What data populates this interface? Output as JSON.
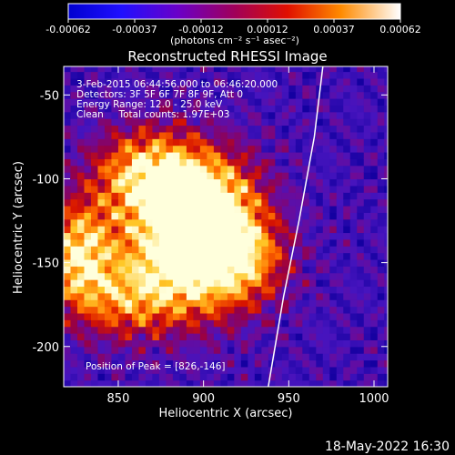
{
  "chart_data": {
    "type": "heatmap",
    "title": "Reconstructed RHESSI Image",
    "xlabel": "Heliocentric X (arcsec)",
    "ylabel": "Heliocentric Y (arcsec)",
    "xlim": [
      818,
      1008
    ],
    "ylim": [
      -224,
      -33
    ],
    "x_ticks": [
      850,
      900,
      950,
      1000
    ],
    "y_ticks": [
      -50,
      -100,
      -150,
      -200
    ],
    "colorbar": {
      "ticks": [
        "-0.00062",
        "-0.00037",
        "-0.00012",
        "0.00012",
        "0.00037",
        "0.00062"
      ],
      "unit_label": "(photons cm⁻² s⁻¹ asec⁻²)",
      "range": [
        -0.00062,
        0.00062
      ],
      "colormap": "rhessi-fire"
    },
    "peak_position": [
      826,
      -146
    ],
    "limb_arc": [
      [
        970,
        -33
      ],
      [
        965,
        -75
      ],
      [
        956,
        -125
      ],
      [
        947,
        -170
      ],
      [
        938,
        -224
      ]
    ],
    "source_blobs": [
      {
        "x": 826,
        "y": -145,
        "sx": 14,
        "sy": 22,
        "amp": 0.95
      },
      {
        "x": 880,
        "y": -130,
        "sx": 28,
        "sy": 34,
        "amp": 0.75
      },
      {
        "x": 905,
        "y": -115,
        "sx": 22,
        "sy": 22,
        "amp": 0.85
      },
      {
        "x": 865,
        "y": -95,
        "sx": 22,
        "sy": 18,
        "amp": 0.7
      },
      {
        "x": 895,
        "y": -160,
        "sx": 30,
        "sy": 20,
        "amp": 0.6
      },
      {
        "x": 925,
        "y": -145,
        "sx": 18,
        "sy": 18,
        "amp": 0.55
      },
      {
        "x": 850,
        "y": -175,
        "sx": 20,
        "sy": 16,
        "amp": 0.45
      }
    ]
  },
  "annotations": {
    "time_range": "3-Feb-2015 06:44:56.000 to 06:46:20.000",
    "detectors": "Detectors: 3F 5F 6F 7F 8F 9F, Att 0",
    "energy_range": "Energy Range: 12.0 - 25.0 keV",
    "clean_counts": "Clean     Total counts: 1.97E+03",
    "peak_label": "Position of Peak = [826,-146]"
  },
  "footer": {
    "timestamp": "18-May-2022 16:30"
  },
  "colors": {
    "background": "#000000",
    "foreground": "#ffffff"
  }
}
